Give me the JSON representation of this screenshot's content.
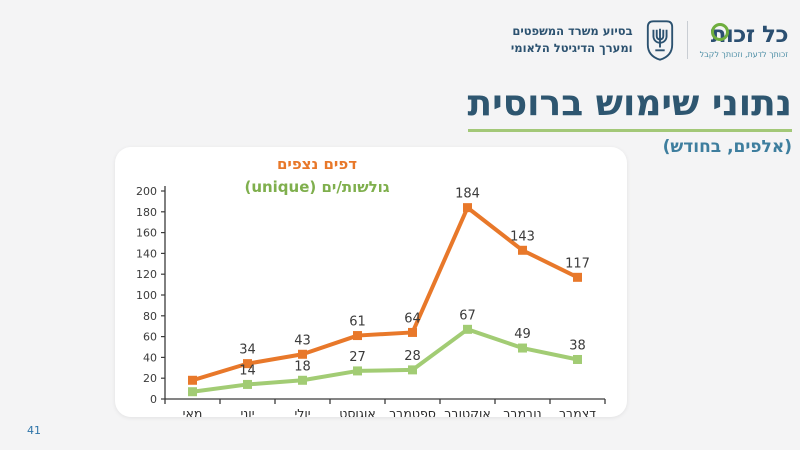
{
  "page": {
    "number": "41",
    "background_color": "#f4f4f5",
    "card_color": "#ffffff"
  },
  "header": {
    "logo": {
      "name": "כל זכות",
      "tagline": "זכותך לדעת, וזכותך לקבל",
      "accent_green": "#6fae3e",
      "navy": "#2b4f71"
    },
    "emblem": "israel-state-emblem",
    "ministry_credit_line1": "בסיוע משרד המשפטים",
    "ministry_credit_line2": "ומערך הדיגיטל הלאומי"
  },
  "title": {
    "text": "נתוני שימוש ברוסית",
    "subtitle": "(אלפים, בחודש)",
    "title_color": "#2e5670",
    "underline_color": "#a3c878",
    "subtitle_color": "#3e7e9e"
  },
  "chart_data": {
    "type": "line",
    "title": "",
    "xlabel": "",
    "ylabel": "",
    "categories": [
      "מאי",
      "יוני",
      "יולי",
      "אוגוסט",
      "ספטמבר",
      "אוקטובר",
      "נובמבר",
      "דצמבר"
    ],
    "series": [
      {
        "name": "דפים נצפים",
        "color": "#e8782a",
        "values": [
          18,
          34,
          43,
          61,
          64,
          184,
          143,
          117
        ],
        "labels": [
          "",
          "34",
          "43",
          "61",
          "64",
          "184",
          "143",
          "117"
        ]
      },
      {
        "name": "גולשות/ים (unique)",
        "color": "#a2cc74",
        "legend_color": "#7faf4d",
        "values": [
          7,
          14,
          18,
          27,
          28,
          67,
          49,
          38
        ],
        "labels": [
          "",
          "14",
          "18",
          "27",
          "28",
          "67",
          "49",
          "38"
        ]
      }
    ],
    "ylim": [
      0,
      200
    ],
    "ytick_step": 20,
    "grid": false,
    "legend_position": "top-inside",
    "label_color": "#3b3b3b",
    "axis_color": "#3b3b3b"
  }
}
